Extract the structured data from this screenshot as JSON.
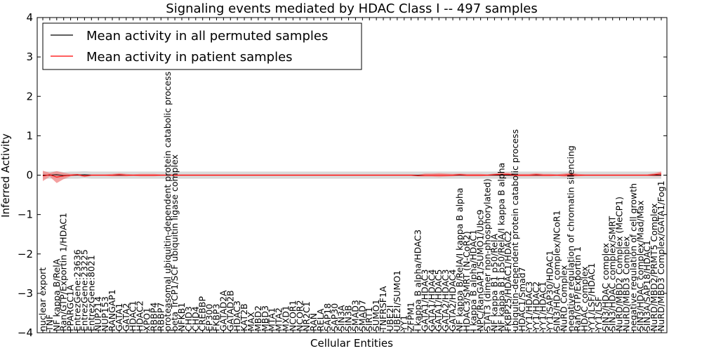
{
  "chart_data": {
    "type": "line",
    "title": "Signaling events mediated by HDAC Class I -- 497 samples",
    "xlabel": "Cellular Entities",
    "ylabel": "Inferred Activity",
    "ylim": [
      -4,
      4
    ],
    "yticks": [
      -4,
      -3,
      -2,
      -1,
      0,
      1,
      2,
      3,
      4
    ],
    "grid": false,
    "legend": {
      "placement": "top-left",
      "entries": [
        {
          "label": "Mean activity in all permuted samples",
          "color": "#000000"
        },
        {
          "label": "Mean activity in patient samples",
          "color": "#ff0000"
        }
      ]
    },
    "categories": [
      "nuclear export",
      "TNF",
      "NF kappa B/RelA",
      "Ran/GTP/Exportin 1/HDAC1",
      "PPARGC1A",
      "EntrezGene:23636",
      "EntrezGene:23225",
      "EntrezGene:8021",
      "NUP214",
      "NUP153",
      "RANGAP1",
      "GATA1",
      "GATA2",
      "HDAC1",
      "HDAC2",
      "XPO1",
      "RBBP4",
      "RBBP7",
      "proteasomal ubiquitin-dependent protein catabolic process",
      "beta TrCP1/SCF ubiquitin ligase complex",
      "NFKB1",
      "CHD3",
      "CHD4",
      "CREBBP",
      "EP300",
      "FKBP3",
      "GATAD2A",
      "GATAD2B",
      "HDAC3",
      "KAT2B",
      "MAX",
      "MBD2",
      "MBD3",
      "MTA1",
      "MTA2",
      "MXD1",
      "NCOR1",
      "NCOR2",
      "NR2C1",
      "RAN",
      "RELA",
      "SAP18",
      "SAP30",
      "SIN3A",
      "SIN3B",
      "SMAD3",
      "SMAD7",
      "SIRT1",
      "SUMO1",
      "TNFRSF1A",
      "UBE2I",
      "UBE2I/SUMO1",
      "YY1",
      "ZFPM1",
      "I kappa B alpha/HDAC3",
      "GATA1/HDAC3",
      "GATA1/HDAC4",
      "GATA1/HDAC5",
      "GATA2/HDAC3",
      "GATA2/HDAC4",
      "NF kappa B/RelA/I kappa B alpha",
      "HDAC3/SMRT (N-CoR2)",
      "I kappa B alpha/HDAC1",
      "NPC/RanGAP1/SUMO1/Ubc9",
      "STAT3 (dimer non-phosphorylated)",
      "NF kappa B1 p50/RelA",
      "NF kappa B1 p50/RelA/I kappa B alpha",
      "FKBP25/HDAC1/HDAC2",
      "ubiquitin-dependent protein catabolic process",
      "HDAC1/Smad7",
      "YY1/HDAC3",
      "YY1/HDAC2",
      "YY1/HDAC1",
      "YY1/SAP30/HDAC1",
      "SIN3/HDAC complex/NCoR1",
      "NuRD Complex",
      "negative regulation of chromatin silencing",
      "Ran/GTP/Exportin 1",
      "HDAC complex",
      "YY1/LSF/HDAC1",
      "YY1/LSF",
      "SIN3/HDAC complex",
      "SIN3/HDAC complex/SMRT",
      "NuRD/MBD2 Complex (MeCP1)",
      "NuRD/MBD3 Complex",
      "negative regulation of cell growth",
      "SIN3/HDAC complex/Mad/Max",
      "SIN3A/SAP18/HDAC1",
      "NuRD/MBD2/PRMT5 Complex",
      "NuRD/MBD3 Complex/GATA1/Fog1"
    ],
    "series": [
      {
        "name": "Mean activity in all permuted samples",
        "color": "#000000",
        "values": [
          0.0,
          0.0,
          0.01,
          -0.01,
          0.0,
          0.0,
          0.01,
          0.0,
          0.0,
          0.0,
          0.0,
          0.0,
          0.0,
          0.0,
          0.0,
          0.0,
          0.0,
          0.0,
          0.0,
          0.0,
          0.0,
          0.0,
          0.0,
          0.0,
          0.0,
          0.0,
          0.0,
          0.0,
          0.0,
          0.0,
          0.0,
          0.0,
          0.0,
          0.0,
          0.0,
          0.0,
          0.0,
          0.0,
          0.0,
          0.0,
          0.0,
          0.0,
          0.0,
          0.0,
          0.0,
          0.0,
          0.0,
          0.0,
          0.0,
          0.0,
          0.0,
          0.0,
          0.0,
          0.0,
          0.0,
          0.0,
          0.0,
          0.0,
          0.0,
          0.0,
          0.0,
          0.0,
          0.0,
          0.0,
          0.0,
          0.0,
          0.0,
          0.0,
          0.0,
          0.0,
          0.0,
          0.0,
          0.0,
          0.0,
          0.0,
          0.0,
          0.0,
          0.0,
          0.0,
          0.0,
          0.0,
          0.0,
          0.0,
          0.0,
          0.0,
          0.0,
          0.0,
          0.0,
          0.0,
          0.0
        ],
        "band": 0.09
      },
      {
        "name": "Mean activity in patient samples",
        "color": "#ff0000",
        "values": [
          -0.02,
          0.01,
          -0.05,
          -0.02,
          0.0,
          0.01,
          -0.02,
          0.0,
          0.0,
          0.0,
          0.0,
          0.01,
          0.0,
          0.0,
          0.0,
          0.0,
          0.0,
          0.0,
          0.0,
          0.0,
          0.0,
          0.0,
          0.0,
          0.0,
          0.0,
          0.0,
          0.0,
          0.0,
          0.0,
          0.0,
          0.0,
          0.0,
          0.0,
          0.0,
          0.0,
          0.0,
          0.0,
          0.0,
          0.0,
          0.0,
          0.0,
          0.0,
          0.0,
          0.0,
          0.0,
          0.0,
          0.0,
          0.0,
          0.0,
          0.0,
          0.0,
          0.0,
          0.0,
          0.0,
          -0.01,
          0.0,
          0.0,
          0.0,
          0.0,
          0.0,
          0.01,
          0.0,
          0.0,
          0.0,
          0.0,
          0.01,
          0.02,
          0.02,
          0.0,
          0.0,
          0.0,
          0.01,
          0.0,
          0.0,
          0.0,
          0.0,
          0.01,
          0.0,
          0.0,
          0.0,
          0.0,
          0.0,
          0.0,
          0.0,
          0.0,
          0.0,
          0.0,
          0.0,
          0.01,
          0.03
        ],
        "band_values": [
          0.13,
          0.05,
          0.15,
          0.08,
          0.03,
          0.02,
          0.03,
          0.02,
          0.02,
          0.02,
          0.03,
          0.04,
          0.03,
          0.02,
          0.03,
          0.03,
          0.03,
          0.02,
          0.02,
          0.02,
          0.02,
          0.02,
          0.02,
          0.02,
          0.02,
          0.02,
          0.02,
          0.02,
          0.02,
          0.02,
          0.02,
          0.02,
          0.02,
          0.02,
          0.02,
          0.02,
          0.02,
          0.02,
          0.02,
          0.02,
          0.02,
          0.02,
          0.02,
          0.02,
          0.02,
          0.02,
          0.02,
          0.02,
          0.02,
          0.02,
          0.02,
          0.02,
          0.02,
          0.02,
          0.02,
          0.04,
          0.04,
          0.05,
          0.04,
          0.03,
          0.03,
          0.03,
          0.03,
          0.03,
          0.02,
          0.03,
          0.04,
          0.04,
          0.03,
          0.03,
          0.03,
          0.04,
          0.03,
          0.03,
          0.02,
          0.04,
          0.05,
          0.03,
          0.02,
          0.02,
          0.02,
          0.02,
          0.02,
          0.02,
          0.02,
          0.02,
          0.02,
          0.02,
          0.04,
          0.06
        ]
      }
    ]
  }
}
